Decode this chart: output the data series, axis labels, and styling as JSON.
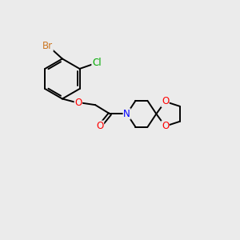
{
  "background_color": "#ebebeb",
  "bond_color": "#000000",
  "atom_colors": {
    "Br": "#cc7722",
    "Cl": "#00aa00",
    "O": "#ff0000",
    "N": "#0000ff",
    "C": "#000000"
  },
  "figsize": [
    3.0,
    3.0
  ],
  "dpi": 100,
  "bond_lw": 1.4,
  "font_size": 8.5
}
